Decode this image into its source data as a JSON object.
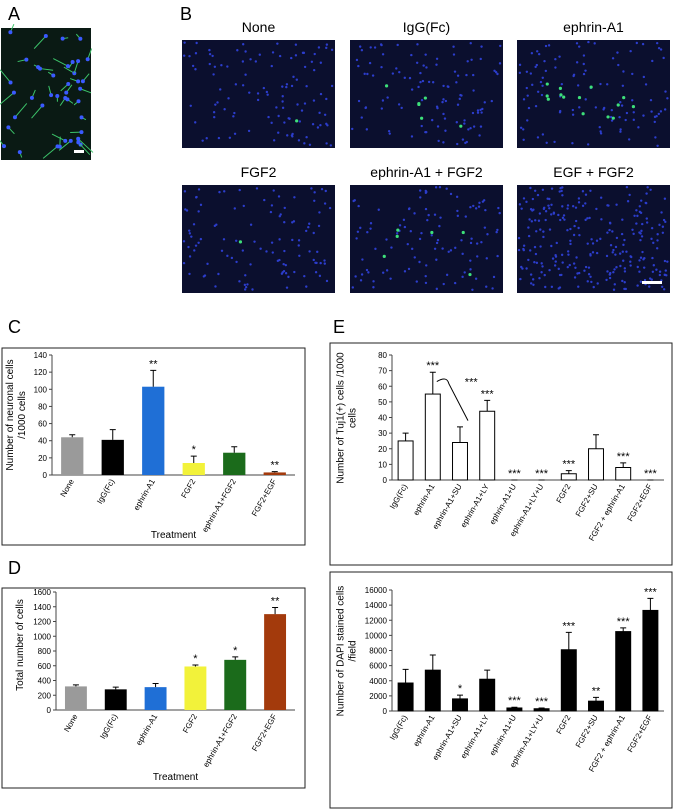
{
  "panel_labels": [
    "A",
    "B",
    "C",
    "D",
    "E"
  ],
  "images": [
    "None",
    "IgG(Fc)",
    "ephrin-A1",
    "FGF2",
    "ephrin-A1 + FGF2",
    "EGF + FGF2"
  ],
  "chart_data": [
    {
      "type": "bar",
      "ylabel": "Number of neuronal cells /1000 cells",
      "xlabel": "Treatment",
      "categories": [
        "None",
        "IgG(Fc)",
        "ephrin-A1",
        "FGF2",
        "ephrin-A1+FGF2",
        "FGF2+EGF"
      ],
      "values": [
        44,
        41,
        103,
        14,
        26,
        3
      ],
      "errors": [
        3,
        12,
        19,
        8,
        7,
        1
      ],
      "colors": [
        "#9a9a9a",
        "#000000",
        "#1f6fd6",
        "#f2f23a",
        "#1b6b1b",
        "#a33a0c"
      ],
      "annotations": [
        null,
        null,
        "**",
        "*",
        null,
        "**"
      ],
      "ylim": [
        0,
        140
      ],
      "yticks": [
        0,
        20,
        40,
        60,
        80,
        100,
        120,
        140
      ]
    },
    {
      "type": "bar",
      "ylabel": "Total number of cells",
      "xlabel": "Treatment",
      "categories": [
        "None",
        "IgG(Fc)",
        "ephrin-A1",
        "FGF2",
        "ephrin-A1+FGF2",
        "FGF2+EGF"
      ],
      "values": [
        320,
        280,
        310,
        590,
        680,
        1300
      ],
      "errors": [
        20,
        30,
        50,
        20,
        40,
        90
      ],
      "colors": [
        "#9a9a9a",
        "#000000",
        "#1f6fd6",
        "#f2f23a",
        "#1b6b1b",
        "#a33a0c"
      ],
      "annotations": [
        null,
        null,
        null,
        "*",
        "*",
        "**"
      ],
      "ylim": [
        0,
        1600
      ],
      "yticks": [
        0,
        200,
        400,
        600,
        800,
        1000,
        1200,
        1400,
        1600
      ]
    },
    {
      "type": "bar",
      "ylabel": "Number of Tuj1(+) cells /1000 cells",
      "categories": [
        "IgG(Fc)",
        "ephrin-A1",
        "ephrin-A1+SU",
        "ephrin-A1+LY",
        "ephrin-A1+U",
        "ephrin-A1+LY+U",
        "FGF2",
        "FGF2+SU",
        "FGF2 + ephrin-A1",
        "FGF2+EGF"
      ],
      "values": [
        25,
        55,
        24,
        44,
        0,
        0,
        4,
        20,
        8,
        0
      ],
      "errors": [
        5,
        14,
        10,
        7,
        0,
        0,
        2,
        9,
        3,
        0
      ],
      "color": "#ffffff",
      "annotations": [
        null,
        "***",
        null,
        "***",
        "***",
        "***",
        "***",
        null,
        "***",
        "***"
      ],
      "bracket_label": "***",
      "ylim": [
        0,
        80
      ],
      "yticks": [
        0,
        10,
        20,
        30,
        40,
        50,
        60,
        70,
        80
      ]
    },
    {
      "type": "bar",
      "ylabel": "Number of DAPI stained cells /field",
      "categories": [
        "IgG(Fc)",
        "ephrin-A1",
        "ephrin-A1+SU",
        "ephrin-A1+LY",
        "ephrin-A1+U",
        "ephrin-A1+LY+U",
        "FGF2",
        "FGF2+SU",
        "FGF2 + ephrin-A1",
        "FGF2+EGF"
      ],
      "values": [
        3700,
        5400,
        1600,
        4200,
        400,
        300,
        8100,
        1300,
        10500,
        13300
      ],
      "errors": [
        1800,
        2000,
        500,
        1200,
        100,
        100,
        2300,
        500,
        500,
        1600
      ],
      "color": "#000000",
      "annotations": [
        null,
        null,
        "*",
        null,
        "***",
        "***",
        "***",
        "**",
        "***",
        "***"
      ],
      "ylim": [
        0,
        16000
      ],
      "yticks": [
        0,
        2000,
        4000,
        6000,
        8000,
        10000,
        12000,
        14000,
        16000
      ]
    }
  ]
}
